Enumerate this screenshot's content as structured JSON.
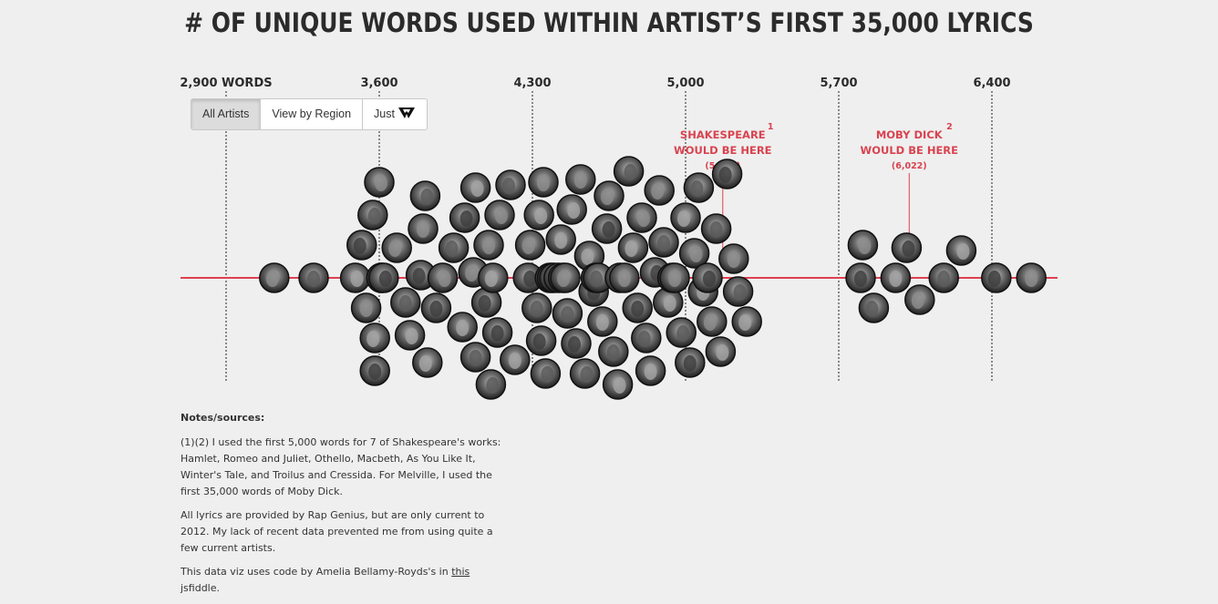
{
  "title": "# OF UNIQUE WORDS USED WITHIN ARTIST’S FIRST 35,000 LYRICS",
  "toggle": {
    "all_artists": "All Artists",
    "by_region": "View by Region",
    "just": "Just"
  },
  "notes": {
    "heading": "Notes/sources:",
    "p1": "(1)(2) I used the first 5,000 words for 7 of Shakespeare's works: Hamlet, Romeo and Juliet, Othello, Macbeth, As You Like It, Winter's Tale, and Troilus and Cressida. For Melville, I used the first 35,000 words of Moby Dick.",
    "p2": "All lyrics are provided by Rap Genius, but are only current to 2012. My lack of recent data prevented me from using quite a few current artists.",
    "p3_pre": "This data viz uses code by Amelia Bellamy-Royds's in ",
    "p3_link": "this",
    "p3_post": " jsfiddle."
  },
  "colors": {
    "axis_line": "#e04050",
    "annotation": "#d9434f",
    "text": "#2b2b2b"
  },
  "chart_data": {
    "type": "scatter",
    "subtype": "beeswarm",
    "title": "# OF UNIQUE WORDS USED WITHIN ARTIST’S FIRST 35,000 LYRICS",
    "xlim": [
      2700,
      6700
    ],
    "ticks": [
      {
        "value": 2900,
        "label": "2,900 WORDS"
      },
      {
        "value": 3600,
        "label": "3,600"
      },
      {
        "value": 4300,
        "label": "4,300"
      },
      {
        "value": 5000,
        "label": "5,000"
      },
      {
        "value": 5700,
        "label": "5,700"
      },
      {
        "value": 6400,
        "label": "6,400"
      }
    ],
    "annotations": [
      {
        "name": "SHAKESPEARE",
        "sup": "1",
        "line2": "WOULD BE HERE",
        "value_label": "(5,170)",
        "value": 5170
      },
      {
        "name": "MOBY DICK",
        "sup": "2",
        "line2": "WOULD BE HERE",
        "value_label": "(6,022)",
        "value": 6022
      }
    ],
    "artists_unique_words": [
      3120,
      3300,
      3490,
      3520,
      3540,
      3580,
      3610,
      3580,
      3570,
      3620,
      3600,
      3610,
      3680,
      3720,
      3740,
      3790,
      3810,
      3800,
      3820,
      3860,
      3890,
      3940,
      3980,
      3990,
      4030,
      4040,
      4040,
      4090,
      4100,
      4110,
      4120,
      4140,
      4150,
      4200,
      4220,
      4280,
      4290,
      4320,
      4330,
      4340,
      4350,
      4360,
      4380,
      4390,
      4400,
      4420,
      4430,
      4440,
      4450,
      4460,
      4480,
      4500,
      4520,
      4540,
      4560,
      4580,
      4590,
      4600,
      4620,
      4640,
      4650,
      4670,
      4690,
      4700,
      4720,
      4740,
      4760,
      4780,
      4800,
      4820,
      4840,
      4860,
      4880,
      4900,
      4920,
      4940,
      4950,
      4980,
      5000,
      5020,
      5040,
      5060,
      5080,
      5100,
      5120,
      5140,
      5160,
      5190,
      5220,
      5240,
      5280,
      5800,
      5810,
      5860,
      5960,
      6010,
      6070,
      6180,
      6260,
      6420,
      6580
    ]
  }
}
